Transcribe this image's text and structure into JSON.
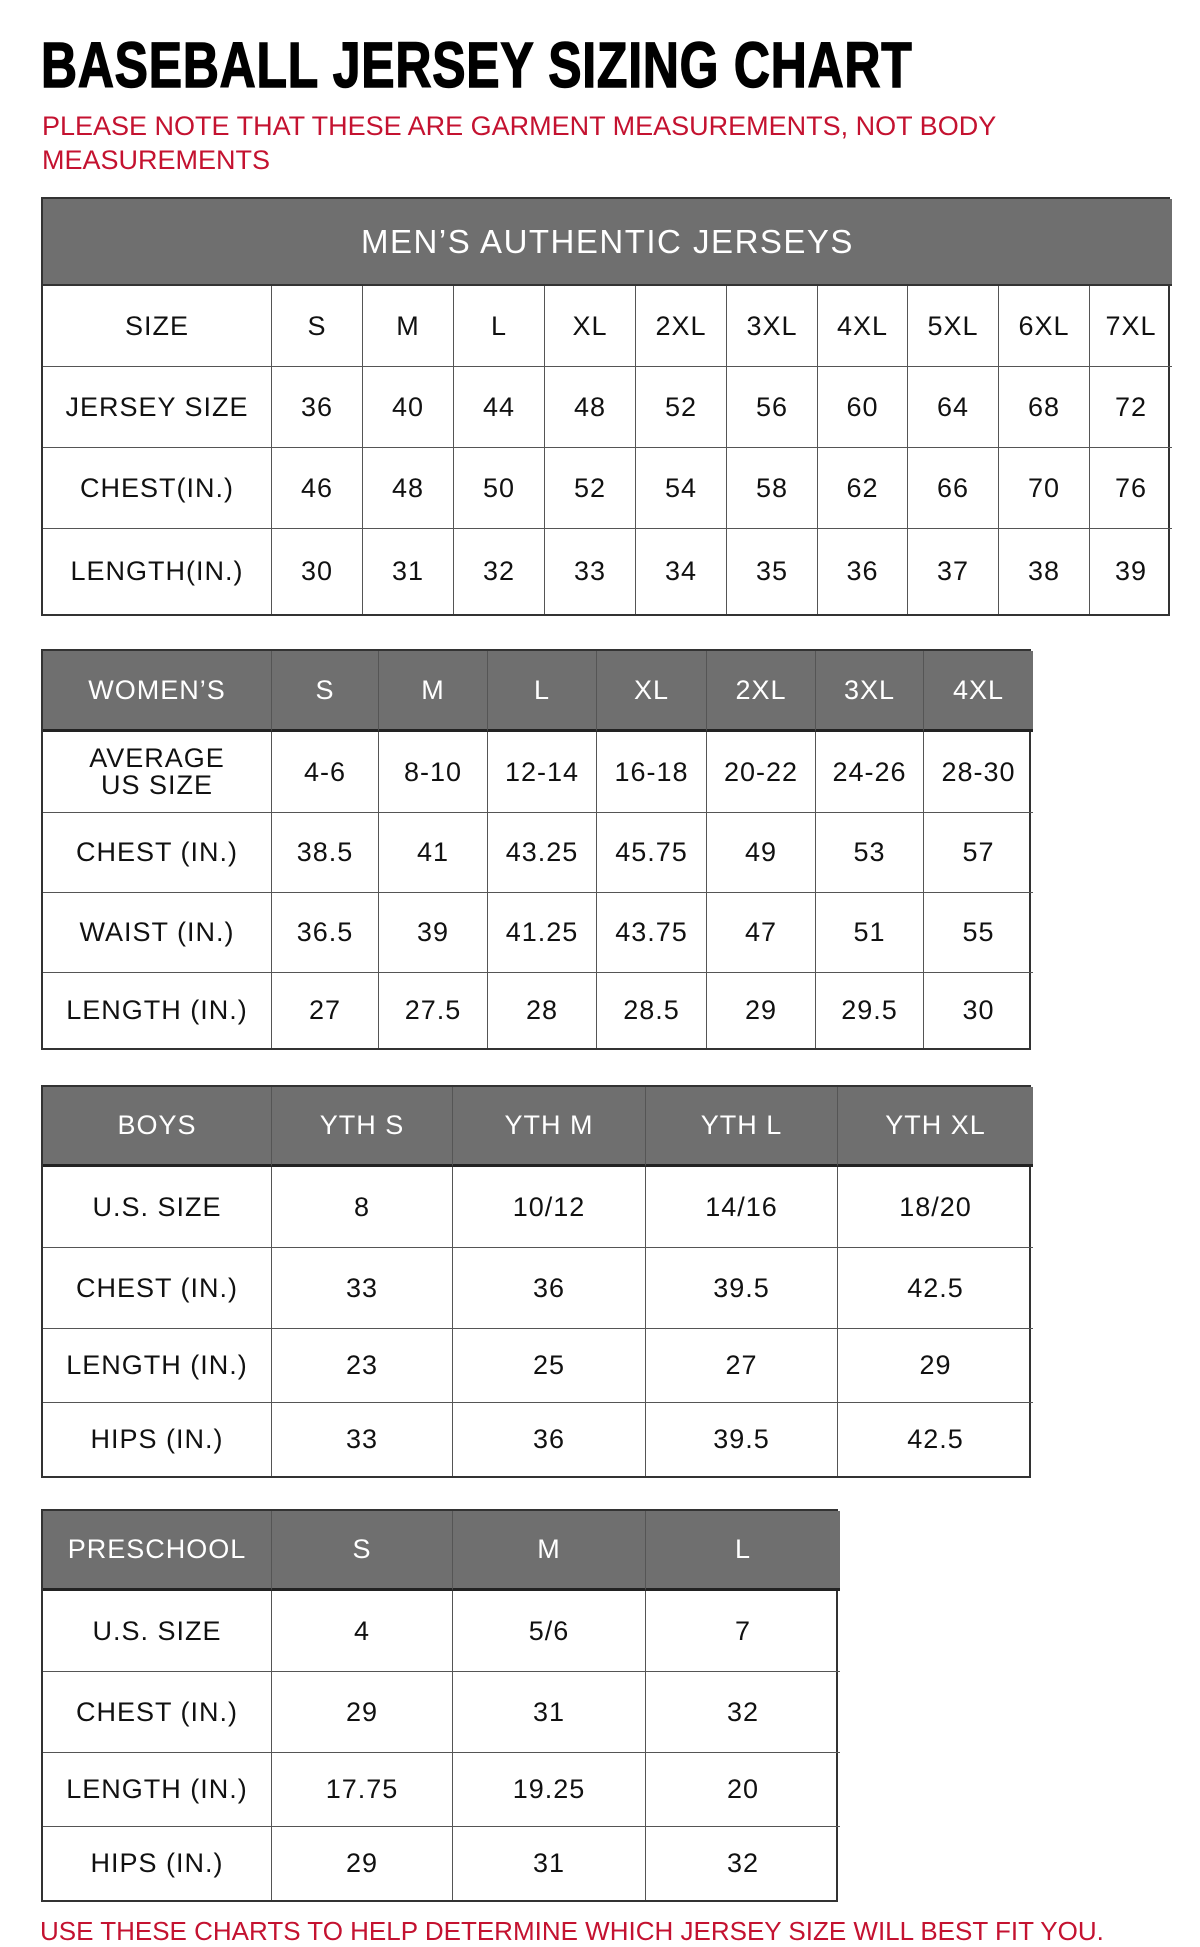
{
  "title": "BASEBALL JERSEY SIZING CHART",
  "note_line1": "PLEASE NOTE THAT THESE ARE GARMENT MEASUREMENTS, NOT BODY",
  "note_line2": "MEASUREMENTS",
  "footer": "USE THESE CHARTS TO HELP DETERMINE WHICH JERSEY SIZE WILL BEST FIT YOU.",
  "colors": {
    "header_bg": "#6f6f6f",
    "accent_red": "#c41230"
  },
  "tables": [
    {
      "banner": "MEN’S AUTHENTIC JERSEYS",
      "rows": [
        [
          "SIZE",
          "S",
          "M",
          "L",
          "XL",
          "2XL",
          "3XL",
          "4XL",
          "5XL",
          "6XL",
          "7XL"
        ],
        [
          "JERSEY SIZE",
          "36",
          "40",
          "44",
          "48",
          "52",
          "56",
          "60",
          "64",
          "68",
          "72"
        ],
        [
          "CHEST(IN.)",
          "46",
          "48",
          "50",
          "52",
          "54",
          "58",
          "62",
          "66",
          "70",
          "76"
        ],
        [
          "LENGTH(IN.)",
          "30",
          "31",
          "32",
          "33",
          "34",
          "35",
          "36",
          "37",
          "38",
          "39"
        ]
      ]
    },
    {
      "rows": [
        [
          "WOMEN’S",
          "S",
          "M",
          "L",
          "XL",
          "2XL",
          "3XL",
          "4XL"
        ],
        [
          "AVERAGE\nUS SIZE",
          "4-6",
          "8-10",
          "12-14",
          "16-18",
          "20-22",
          "24-26",
          "28-30"
        ],
        [
          "CHEST (IN.)",
          "38.5",
          "41",
          "43.25",
          "45.75",
          "49",
          "53",
          "57"
        ],
        [
          "WAIST (IN.)",
          "36.5",
          "39",
          "41.25",
          "43.75",
          "47",
          "51",
          "55"
        ],
        [
          "LENGTH (IN.)",
          "27",
          "27.5",
          "28",
          "28.5",
          "29",
          "29.5",
          "30"
        ]
      ]
    },
    {
      "rows": [
        [
          "BOYS",
          "YTH S",
          "YTH M",
          "YTH L",
          "YTH XL"
        ],
        [
          "U.S. SIZE",
          "8",
          "10/12",
          "14/16",
          "18/20"
        ],
        [
          "CHEST (IN.)",
          "33",
          "36",
          "39.5",
          "42.5"
        ],
        [
          "LENGTH (IN.)",
          "23",
          "25",
          "27",
          "29"
        ],
        [
          "HIPS (IN.)",
          "33",
          "36",
          "39.5",
          "42.5"
        ]
      ]
    },
    {
      "rows": [
        [
          "PRESCHOOL",
          "S",
          "M",
          "L"
        ],
        [
          "U.S. SIZE",
          "4",
          "5/6",
          "7"
        ],
        [
          "CHEST (IN.)",
          "29",
          "31",
          "32"
        ],
        [
          "LENGTH (IN.)",
          "17.75",
          "19.25",
          "20"
        ],
        [
          "HIPS (IN.)",
          "29",
          "31",
          "32"
        ]
      ]
    }
  ]
}
